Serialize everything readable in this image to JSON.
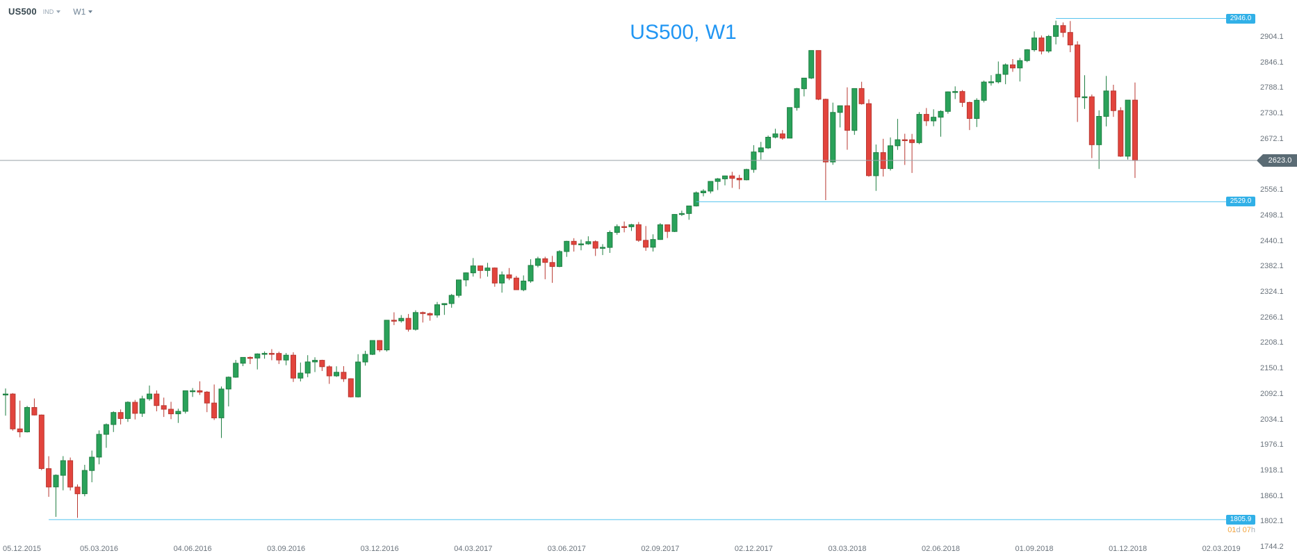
{
  "toolbar": {
    "symbol": "US500",
    "market_type": "IND",
    "timeframe": "W1"
  },
  "price_line": {
    "label": "2623.0",
    "price": 2623.0
  },
  "levels": [
    {
      "label": "2946.0",
      "price": 2946.0,
      "start_week": 146
    },
    {
      "label": "2529.0",
      "price": 2529.0,
      "start_week": 96
    },
    {
      "label": "1805.9",
      "price": 1805.9,
      "start_week": 6
    }
  ],
  "countdown": {
    "days": "01",
    "days_unit": "d ",
    "hours": "07",
    "hours_unit": "h"
  },
  "colors": {
    "bull": "#2aa25a",
    "bull_border": "#1e7e41",
    "bear": "#e2443d",
    "bear_border": "#b83730",
    "level_line": "#55c3ef",
    "level_badge": "#31b0e7",
    "price_tag_bg": "#5a6b74",
    "price_line": "#99a1a8",
    "title": "#2196f3",
    "countdown_accent": "#f2a33c",
    "countdown_unit": "#a8b0b7",
    "axis_text": "#6a737c",
    "symbol_color": "#37474f",
    "toolbar_muted": "#98a6b3",
    "timeframe_color": "#6e8294"
  },
  "chart_data": {
    "type": "candlestick",
    "title": "US500, W1",
    "symbol": "US500",
    "timeframe": "W1",
    "grid": "off",
    "legend": "none",
    "ylim": [
      1714,
      2988
    ],
    "y_ticks": [
      2904.1,
      2846.1,
      2788.1,
      2730.1,
      2672.1,
      2556.1,
      2498.1,
      2440.1,
      2382.1,
      2324.1,
      2266.1,
      2208.1,
      2150.1,
      2092.1,
      2034.1,
      1976.1,
      1918.1,
      1860.1,
      1802.1,
      1744.2
    ],
    "x_tick_labels": [
      "05.12.2015",
      "05.03.2016",
      "04.06.2016",
      "03.09.2016",
      "03.12.2016",
      "04.03.2017",
      "03.06.2017",
      "02.09.2017",
      "02.12.2017",
      "03.03.2018",
      "02.06.2018",
      "01.09.2018",
      "01.12.2018",
      "02.03.2019"
    ],
    "x_tick_week_indices": [
      0,
      13,
      26,
      39,
      52,
      65,
      78,
      91,
      104,
      117,
      130,
      143,
      156,
      169
    ],
    "last_price": 2623.0,
    "horizontal_levels": [
      2946.0,
      2529.0,
      1805.9
    ],
    "ohlc": [
      [
        2090.1,
        2104.3,
        2042.4,
        2091.7
      ],
      [
        2091.7,
        2093.8,
        2008.4,
        2012.4
      ],
      [
        2012.4,
        2076.7,
        1993.3,
        2005.6
      ],
      [
        2005.6,
        2064.7,
        2004.2,
        2061.0
      ],
      [
        2061.0,
        2081.6,
        2042.9,
        2043.9
      ],
      [
        2043.9,
        2045.0,
        1918.5,
        1922.0
      ],
      [
        1922.0,
        1950.3,
        1857.8,
        1880.3
      ],
      [
        1880.3,
        1908.9,
        1812.3,
        1906.9
      ],
      [
        1906.9,
        1950.4,
        1872.7,
        1940.2
      ],
      [
        1940.2,
        1947.2,
        1872.2,
        1880.1
      ],
      [
        1880.1,
        1886.0,
        1810.1,
        1864.8
      ],
      [
        1864.8,
        1930.7,
        1859.1,
        1917.8
      ],
      [
        1917.8,
        1963.0,
        1891.0,
        1948.1
      ],
      [
        1948.1,
        2009.1,
        1931.8,
        2000.0
      ],
      [
        2000.0,
        2024.6,
        1969.3,
        2022.2
      ],
      [
        2022.2,
        2052.4,
        2005.2,
        2049.6
      ],
      [
        2049.6,
        2056.6,
        2022.5,
        2035.9
      ],
      [
        2035.9,
        2075.1,
        2028.3,
        2072.8
      ],
      [
        2072.8,
        2078.2,
        2033.8,
        2047.6
      ],
      [
        2047.6,
        2087.8,
        2039.7,
        2080.7
      ],
      [
        2080.7,
        2111.0,
        2076.3,
        2091.6
      ],
      [
        2091.6,
        2099.9,
        2052.3,
        2065.3
      ],
      [
        2065.3,
        2083.4,
        2039.5,
        2057.1
      ],
      [
        2057.1,
        2074.0,
        2034.4,
        2046.6
      ],
      [
        2046.6,
        2058.4,
        2025.9,
        2052.3
      ],
      [
        2052.3,
        2099.4,
        2047.3,
        2099.1
      ],
      [
        2099.1,
        2105.3,
        2085.1,
        2099.1
      ],
      [
        2099.1,
        2120.6,
        2089.7,
        2096.1
      ],
      [
        2096.1,
        2098.4,
        2050.4,
        2071.2
      ],
      [
        2071.2,
        2113.3,
        2032.6,
        2037.4
      ],
      [
        2037.4,
        2108.7,
        1991.7,
        2103.0
      ],
      [
        2103.0,
        2131.7,
        2063.6,
        2129.9
      ],
      [
        2129.9,
        2169.1,
        2128.6,
        2161.7
      ],
      [
        2161.7,
        2175.6,
        2155.0,
        2175.0
      ],
      [
        2175.0,
        2177.1,
        2159.8,
        2173.6
      ],
      [
        2173.6,
        2184.1,
        2147.6,
        2182.9
      ],
      [
        2182.9,
        2188.5,
        2172.0,
        2184.1
      ],
      [
        2184.1,
        2193.8,
        2168.5,
        2183.9
      ],
      [
        2183.9,
        2187.9,
        2160.0,
        2169.0
      ],
      [
        2169.0,
        2184.9,
        2157.1,
        2180.0
      ],
      [
        2180.0,
        2186.6,
        2119.1,
        2127.8
      ],
      [
        2127.8,
        2163.3,
        2120.3,
        2139.2
      ],
      [
        2139.2,
        2180.0,
        2130.0,
        2164.7
      ],
      [
        2164.7,
        2175.3,
        2141.6,
        2168.3
      ],
      [
        2168.3,
        2169.6,
        2144.0,
        2153.7
      ],
      [
        2153.7,
        2157.0,
        2114.7,
        2133.0
      ],
      [
        2133.0,
        2154.8,
        2130.5,
        2141.2
      ],
      [
        2141.2,
        2155.1,
        2119.4,
        2126.4
      ],
      [
        2126.4,
        2127.5,
        2083.8,
        2085.2
      ],
      [
        2085.2,
        2182.3,
        2083.8,
        2164.5
      ],
      [
        2164.5,
        2189.9,
        2156.1,
        2181.9
      ],
      [
        2181.9,
        2213.4,
        2180.4,
        2213.4
      ],
      [
        2213.4,
        2214.1,
        2187.4,
        2192.0
      ],
      [
        2192.0,
        2259.8,
        2188.4,
        2259.5
      ],
      [
        2259.5,
        2277.5,
        2248.4,
        2258.1
      ],
      [
        2258.1,
        2271.2,
        2254.2,
        2263.8
      ],
      [
        2263.8,
        2273.8,
        2233.6,
        2238.8
      ],
      [
        2238.8,
        2282.1,
        2236.0,
        2277.0
      ],
      [
        2277.0,
        2279.3,
        2254.3,
        2274.6
      ],
      [
        2274.6,
        2277.0,
        2258.4,
        2271.3
      ],
      [
        2271.3,
        2301.0,
        2265.4,
        2294.7
      ],
      [
        2294.7,
        2298.3,
        2271.7,
        2297.4
      ],
      [
        2297.4,
        2319.2,
        2287.9,
        2316.1
      ],
      [
        2316.1,
        2351.3,
        2311.1,
        2351.2
      ],
      [
        2351.2,
        2368.3,
        2336.5,
        2367.3
      ],
      [
        2367.3,
        2401.0,
        2358.8,
        2383.1
      ],
      [
        2383.1,
        2383.7,
        2354.5,
        2372.6
      ],
      [
        2372.6,
        2390.0,
        2358.6,
        2378.3
      ],
      [
        2378.3,
        2379.6,
        2335.7,
        2344.0
      ],
      [
        2344.0,
        2370.4,
        2322.3,
        2362.7
      ],
      [
        2362.7,
        2378.4,
        2350.7,
        2355.5
      ],
      [
        2355.5,
        2360.3,
        2328.9,
        2329.0
      ],
      [
        2329.0,
        2361.4,
        2325.6,
        2348.7
      ],
      [
        2348.7,
        2398.2,
        2344.6,
        2384.2
      ],
      [
        2384.2,
        2403.9,
        2379.7,
        2399.3
      ],
      [
        2399.3,
        2403.9,
        2352.7,
        2390.9
      ],
      [
        2390.9,
        2405.8,
        2344.5,
        2381.7
      ],
      [
        2381.7,
        2418.7,
        2380.2,
        2415.8
      ],
      [
        2415.8,
        2440.2,
        2403.6,
        2439.1
      ],
      [
        2439.1,
        2446.2,
        2415.7,
        2431.8
      ],
      [
        2431.8,
        2443.0,
        2418.5,
        2433.2
      ],
      [
        2433.2,
        2450.4,
        2431.2,
        2438.3
      ],
      [
        2438.3,
        2441.0,
        2405.7,
        2423.4
      ],
      [
        2423.4,
        2432.6,
        2407.7,
        2425.2
      ],
      [
        2425.2,
        2463.5,
        2412.6,
        2459.3
      ],
      [
        2459.3,
        2477.6,
        2454.1,
        2472.5
      ],
      [
        2472.5,
        2484.0,
        2459.4,
        2472.1
      ],
      [
        2472.1,
        2478.7,
        2462.6,
        2476.8
      ],
      [
        2476.8,
        2482.9,
        2437.8,
        2441.3
      ],
      [
        2441.3,
        2473.8,
        2417.4,
        2425.6
      ],
      [
        2425.6,
        2454.8,
        2415.8,
        2443.1
      ],
      [
        2443.1,
        2480.4,
        2442.4,
        2476.6
      ],
      [
        2476.6,
        2477.5,
        2446.5,
        2461.4
      ],
      [
        2461.4,
        2500.7,
        2460.0,
        2500.2
      ],
      [
        2500.2,
        2508.9,
        2496.5,
        2502.2
      ],
      [
        2502.2,
        2519.4,
        2488.0,
        2519.4
      ],
      [
        2519.4,
        2552.5,
        2518.2,
        2549.3
      ],
      [
        2549.3,
        2557.6,
        2541.3,
        2553.2
      ],
      [
        2553.2,
        2575.4,
        2547.9,
        2575.2
      ],
      [
        2575.2,
        2583.0,
        2555.6,
        2581.1
      ],
      [
        2581.1,
        2588.4,
        2566.3,
        2587.8
      ],
      [
        2587.8,
        2597.0,
        2560.6,
        2582.3
      ],
      [
        2582.3,
        2590.1,
        2557.5,
        2578.9
      ],
      [
        2578.9,
        2604.2,
        2577.6,
        2602.4
      ],
      [
        2602.4,
        2657.7,
        2595.0,
        2642.2
      ],
      [
        2642.2,
        2665.2,
        2624.8,
        2651.5
      ],
      [
        2651.5,
        2679.6,
        2649.0,
        2675.8
      ],
      [
        2675.8,
        2695.0,
        2673.0,
        2683.3
      ],
      [
        2683.3,
        2692.1,
        2670.0,
        2673.6
      ],
      [
        2673.6,
        2743.5,
        2673.6,
        2743.2
      ],
      [
        2743.2,
        2787.9,
        2736.1,
        2786.2
      ],
      [
        2786.2,
        2810.3,
        2768.6,
        2810.3
      ],
      [
        2810.3,
        2873.0,
        2808.1,
        2872.9
      ],
      [
        2872.9,
        2873.0,
        2760.0,
        2762.1
      ],
      [
        2762.1,
        2763.4,
        2532.7,
        2619.6
      ],
      [
        2619.6,
        2754.4,
        2613.0,
        2732.2
      ],
      [
        2732.2,
        2747.8,
        2698.0,
        2747.3
      ],
      [
        2747.3,
        2789.2,
        2647.3,
        2691.3
      ],
      [
        2691.3,
        2786.6,
        2681.2,
        2786.6
      ],
      [
        2786.6,
        2801.9,
        2749.8,
        2752.0
      ],
      [
        2752.0,
        2761.8,
        2585.9,
        2588.3
      ],
      [
        2588.3,
        2659.1,
        2553.8,
        2640.9
      ],
      [
        2640.9,
        2672.1,
        2586.3,
        2604.5
      ],
      [
        2604.5,
        2675.3,
        2600.0,
        2656.3
      ],
      [
        2656.3,
        2717.5,
        2647.0,
        2670.1
      ],
      [
        2670.1,
        2683.6,
        2612.7,
        2669.9
      ],
      [
        2669.9,
        2683.3,
        2594.6,
        2663.4
      ],
      [
        2663.4,
        2732.9,
        2660.0,
        2727.7
      ],
      [
        2727.7,
        2742.1,
        2701.4,
        2713.0
      ],
      [
        2713.0,
        2739.2,
        2700.7,
        2721.3
      ],
      [
        2721.3,
        2736.9,
        2676.8,
        2734.6
      ],
      [
        2734.6,
        2779.9,
        2729.3,
        2779.0
      ],
      [
        2779.0,
        2791.5,
        2762.5,
        2779.7
      ],
      [
        2779.7,
        2783.1,
        2744.6,
        2754.9
      ],
      [
        2754.9,
        2756.6,
        2692.0,
        2718.4
      ],
      [
        2718.4,
        2764.4,
        2699.0,
        2759.8
      ],
      [
        2759.8,
        2804.5,
        2755.0,
        2801.3
      ],
      [
        2801.3,
        2816.8,
        2793.2,
        2801.8
      ],
      [
        2801.8,
        2848.0,
        2798.1,
        2818.8
      ],
      [
        2818.8,
        2843.6,
        2796.3,
        2840.4
      ],
      [
        2840.4,
        2853.6,
        2824.5,
        2833.3
      ],
      [
        2833.3,
        2856.0,
        2802.5,
        2850.1
      ],
      [
        2850.1,
        2876.2,
        2846.6,
        2874.7
      ],
      [
        2874.7,
        2916.5,
        2870.5,
        2901.5
      ],
      [
        2901.5,
        2907.1,
        2864.1,
        2871.7
      ],
      [
        2871.7,
        2908.3,
        2867.5,
        2905.0
      ],
      [
        2905.0,
        2940.9,
        2886.8,
        2929.7
      ],
      [
        2929.7,
        2936.8,
        2903.3,
        2914.0
      ],
      [
        2914.0,
        2939.9,
        2869.2,
        2885.6
      ],
      [
        2885.6,
        2894.0,
        2710.5,
        2767.1
      ],
      [
        2767.1,
        2816.9,
        2740.2,
        2767.8
      ],
      [
        2767.8,
        2772.9,
        2628.2,
        2658.7
      ],
      [
        2658.7,
        2736.9,
        2603.5,
        2723.1
      ],
      [
        2723.1,
        2815.2,
        2700.4,
        2781.0
      ],
      [
        2781.0,
        2795.1,
        2722.1,
        2736.3
      ],
      [
        2736.3,
        2743.9,
        2631.1,
        2632.6
      ],
      [
        2632.6,
        2760.2,
        2625.0,
        2760.2
      ],
      [
        2760.2,
        2800.2,
        2583.2,
        2623.0
      ]
    ]
  }
}
